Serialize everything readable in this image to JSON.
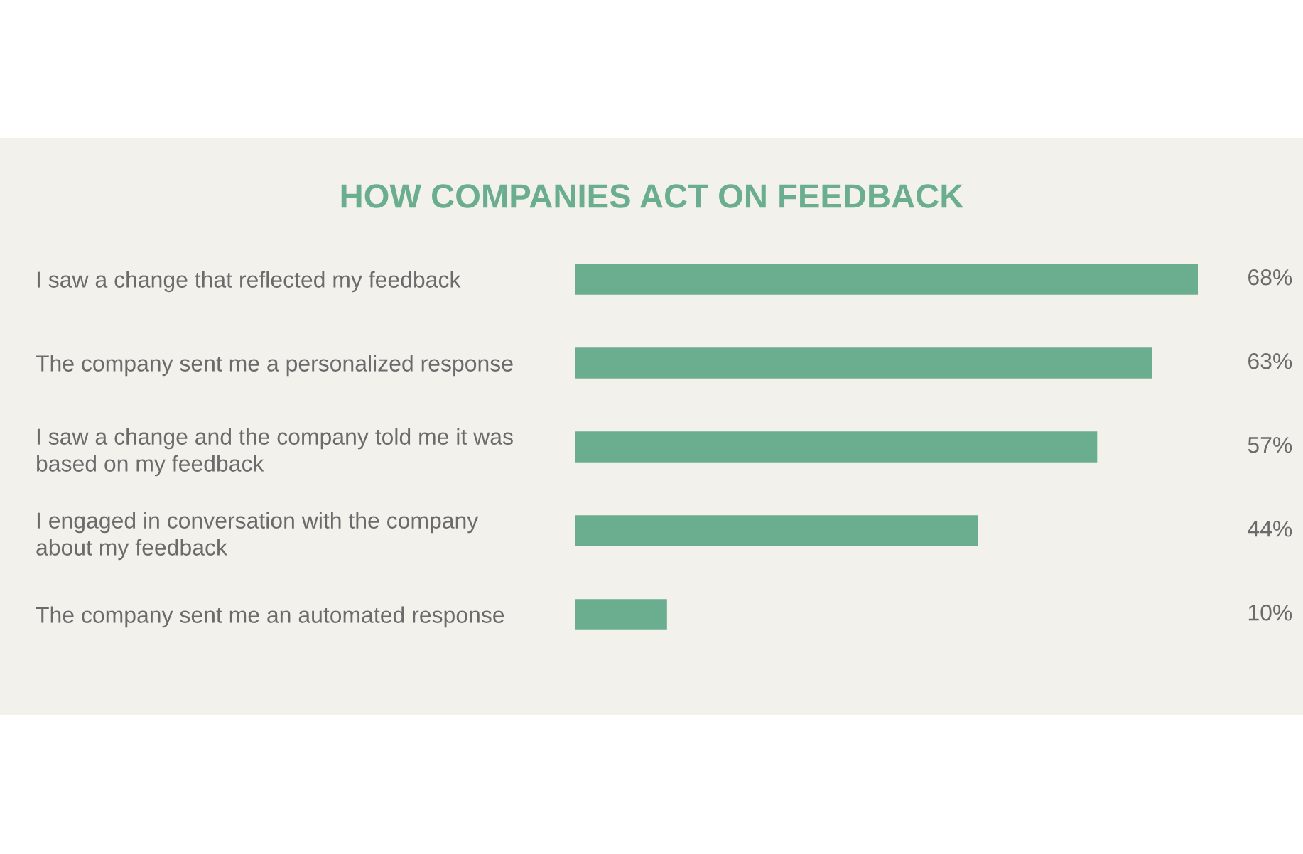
{
  "chart_data": {
    "type": "bar",
    "orientation": "horizontal",
    "title": "HOW COMPANIES ACT ON FEEDBACK",
    "categories": [
      "I saw a change that reflected my feedback",
      "The company sent me a personalized response",
      "I saw a change and the company told me it was\nbased on my feedback",
      "I engaged in conversation with the company\nabout my feedback",
      "The company sent me an automated response"
    ],
    "values": [
      68,
      63,
      57,
      44,
      10
    ],
    "value_labels": [
      "68%",
      "63%",
      "57%",
      "44%",
      "10%"
    ],
    "color": "#6aae8f"
  }
}
